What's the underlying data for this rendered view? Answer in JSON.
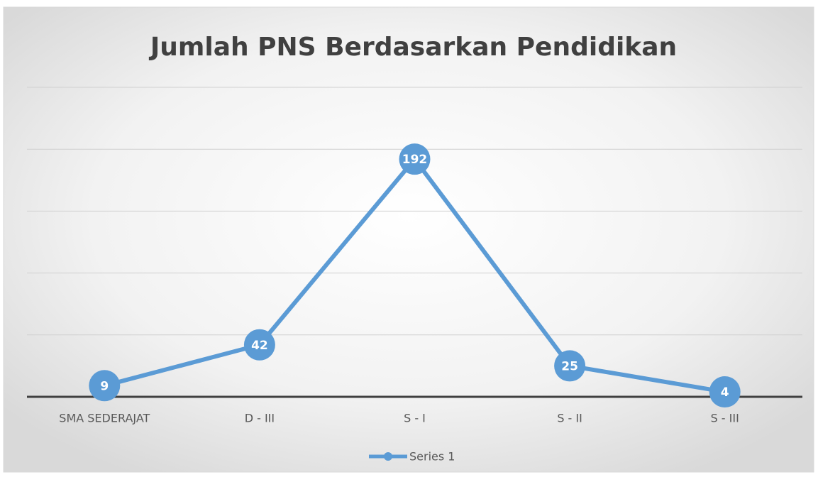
{
  "chart_data": {
    "type": "line",
    "title": "Jumlah PNS Berdasarkan Pendidikan",
    "categories": [
      "SMA SEDERAJAT",
      "D - III",
      "S - I",
      "S - II",
      "S - III"
    ],
    "series": [
      {
        "name": "Series 1",
        "color": "#5b9bd5",
        "values": [
          9,
          42,
          192,
          25,
          4
        ]
      }
    ],
    "ylim": [
      0,
      250
    ],
    "yticks": [
      0,
      50,
      100,
      150,
      200,
      250
    ],
    "grid": true,
    "legend": "bottom"
  }
}
